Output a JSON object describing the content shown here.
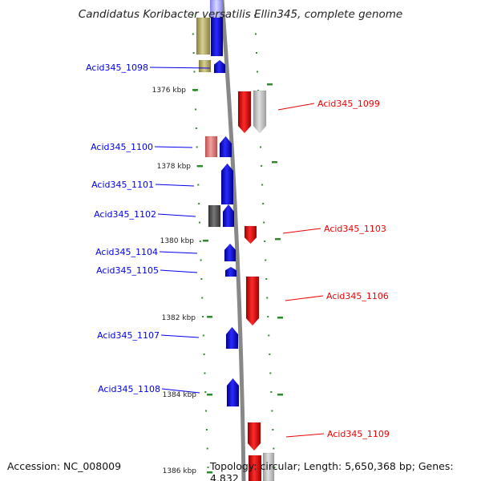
{
  "title": "Candidatus Koribacter versatilis Ellin345, complete genome",
  "footer": {
    "accession": "Accession: NC_008009",
    "topology": "Topology: circular; Length: 5,650,368 bp; Genes: 4,832"
  },
  "colors": {
    "forward_strand": "#0000ee",
    "reverse_strand": "#ee0000",
    "tick": "#2e8b2e",
    "backbone": "#888888"
  },
  "scale_labels": [
    "1376 kbp",
    "1378 kbp",
    "1380 kbp",
    "1382 kbp",
    "1384 kbp",
    "1386 kbp"
  ],
  "genes": [
    {
      "name": "Acid345_1098",
      "strand": "forward"
    },
    {
      "name": "Acid345_1099",
      "strand": "reverse"
    },
    {
      "name": "Acid345_1100",
      "strand": "forward"
    },
    {
      "name": "Acid345_1101",
      "strand": "forward"
    },
    {
      "name": "Acid345_1102",
      "strand": "forward"
    },
    {
      "name": "Acid345_1103",
      "strand": "reverse"
    },
    {
      "name": "Acid345_1104",
      "strand": "forward"
    },
    {
      "name": "Acid345_1105",
      "strand": "forward"
    },
    {
      "name": "Acid345_1106",
      "strand": "reverse"
    },
    {
      "name": "Acid345_1107",
      "strand": "forward"
    },
    {
      "name": "Acid345_1108",
      "strand": "forward"
    },
    {
      "name": "Acid345_1109",
      "strand": "reverse"
    }
  ]
}
